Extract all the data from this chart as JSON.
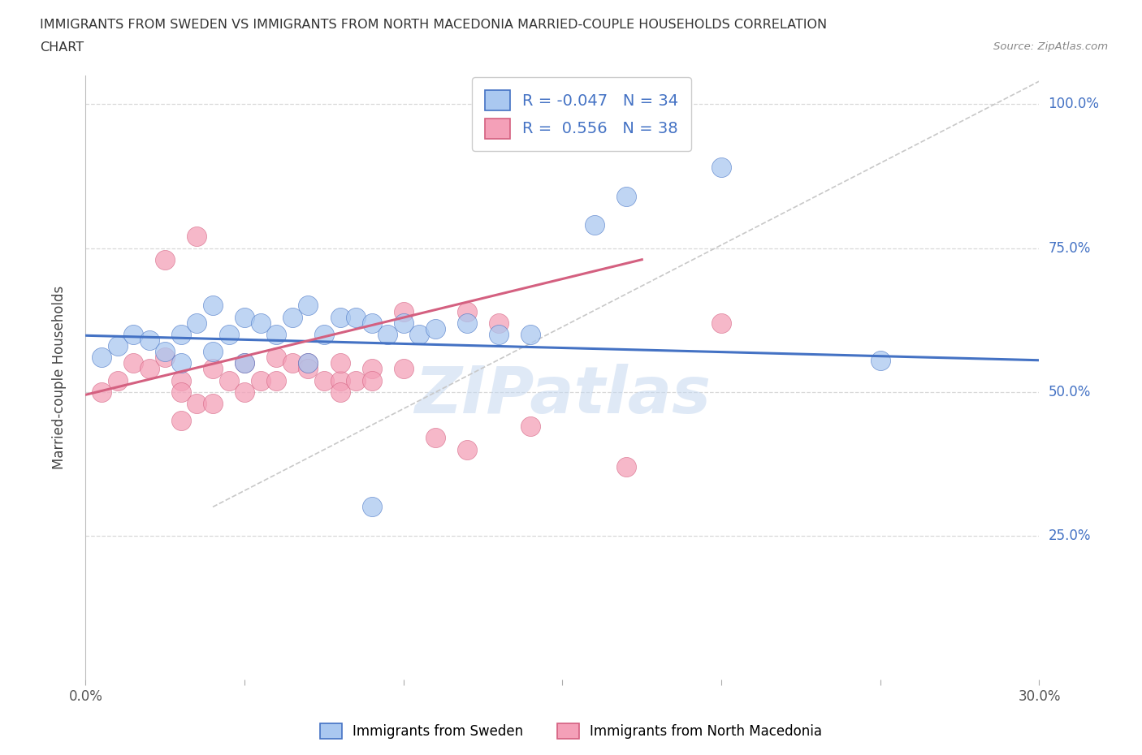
{
  "title_line1": "IMMIGRANTS FROM SWEDEN VS IMMIGRANTS FROM NORTH MACEDONIA MARRIED-COUPLE HOUSEHOLDS CORRELATION",
  "title_line2": "CHART",
  "source": "Source: ZipAtlas.com",
  "ylabel": "Married-couple Households",
  "xlim": [
    0.0,
    0.3
  ],
  "ylim": [
    0.0,
    1.05
  ],
  "xticks": [
    0.0,
    0.05,
    0.1,
    0.15,
    0.2,
    0.25,
    0.3
  ],
  "ytick_positions": [
    0.25,
    0.5,
    0.75,
    1.0
  ],
  "ytick_labels": [
    "25.0%",
    "50.0%",
    "75.0%",
    "100.0%"
  ],
  "sweden_color": "#aac8f0",
  "sweden_line_color": "#4472c4",
  "macedonia_color": "#f4a0b8",
  "macedonia_line_color": "#d46080",
  "reference_line_color": "#c8c8c8",
  "R_sweden": -0.047,
  "N_sweden": 34,
  "R_macedonia": 0.556,
  "N_macedonia": 38,
  "sweden_x": [
    0.005,
    0.01,
    0.015,
    0.02,
    0.025,
    0.03,
    0.035,
    0.04,
    0.045,
    0.05,
    0.055,
    0.06,
    0.065,
    0.07,
    0.075,
    0.08,
    0.085,
    0.09,
    0.095,
    0.1,
    0.105,
    0.11,
    0.12,
    0.13,
    0.14,
    0.16,
    0.17,
    0.2,
    0.03,
    0.04,
    0.05,
    0.07,
    0.25,
    0.09
  ],
  "sweden_y": [
    0.56,
    0.58,
    0.6,
    0.59,
    0.57,
    0.6,
    0.62,
    0.65,
    0.6,
    0.63,
    0.62,
    0.6,
    0.63,
    0.65,
    0.6,
    0.63,
    0.63,
    0.62,
    0.6,
    0.62,
    0.6,
    0.61,
    0.62,
    0.6,
    0.6,
    0.79,
    0.84,
    0.89,
    0.55,
    0.57,
    0.55,
    0.55,
    0.555,
    0.3
  ],
  "macedonia_x": [
    0.005,
    0.01,
    0.015,
    0.02,
    0.025,
    0.03,
    0.03,
    0.035,
    0.04,
    0.045,
    0.05,
    0.055,
    0.06,
    0.065,
    0.07,
    0.075,
    0.08,
    0.08,
    0.085,
    0.09,
    0.1,
    0.03,
    0.04,
    0.05,
    0.06,
    0.07,
    0.08,
    0.09,
    0.1,
    0.11,
    0.12,
    0.13,
    0.14,
    0.17,
    0.12,
    0.2,
    0.025,
    0.035
  ],
  "macedonia_y": [
    0.5,
    0.52,
    0.55,
    0.54,
    0.56,
    0.52,
    0.5,
    0.48,
    0.54,
    0.52,
    0.55,
    0.52,
    0.56,
    0.55,
    0.55,
    0.52,
    0.52,
    0.5,
    0.52,
    0.54,
    0.64,
    0.45,
    0.48,
    0.5,
    0.52,
    0.54,
    0.55,
    0.52,
    0.54,
    0.42,
    0.4,
    0.62,
    0.44,
    0.37,
    0.64,
    0.62,
    0.73,
    0.77
  ],
  "sweden_line_x": [
    0.0,
    0.3
  ],
  "sweden_line_y": [
    0.598,
    0.555
  ],
  "macedonia_line_x": [
    0.0,
    0.175
  ],
  "macedonia_line_y": [
    0.495,
    0.73
  ],
  "ref_line_x": [
    0.04,
    0.3
  ],
  "ref_line_y": [
    0.3,
    1.04
  ],
  "watermark": "ZIPatlas",
  "legend_label1": "Immigrants from Sweden",
  "legend_label2": "Immigrants from North Macedonia",
  "background_color": "#ffffff",
  "grid_color": "#d8d8d8"
}
